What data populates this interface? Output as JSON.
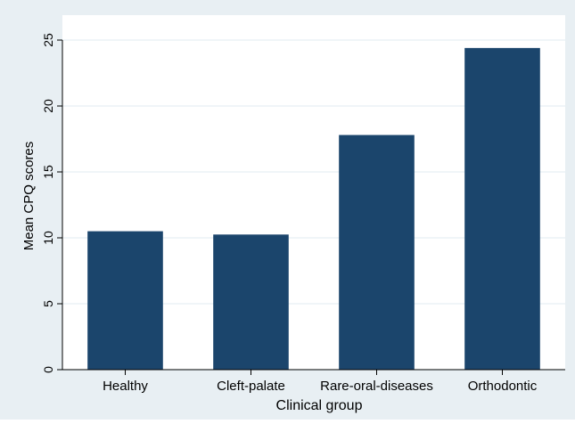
{
  "chart_data": {
    "type": "bar",
    "title": "",
    "xlabel": "Clinical group",
    "ylabel": "Mean CPQ scores",
    "categories": [
      "Healthy",
      "Cleft-palate",
      "Rare-oral-diseases",
      "Orthodontic"
    ],
    "values": [
      10.5,
      10.25,
      17.8,
      24.4
    ],
    "ylim": [
      0,
      25
    ],
    "yticks": [
      0,
      5,
      10,
      15,
      20,
      25
    ],
    "grid": true,
    "legend": "none"
  },
  "colors": {
    "bar": "#1b456c",
    "outer_background": "#e8eff3",
    "plot_background": "#ffffff",
    "grid": "#e8eff3",
    "axis": "#000000"
  }
}
